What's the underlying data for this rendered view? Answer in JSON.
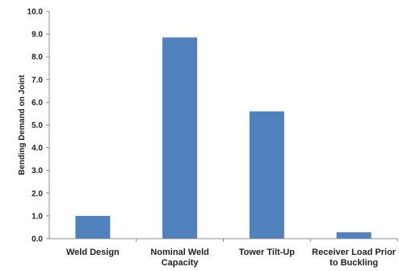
{
  "chart_data": {
    "type": "bar",
    "title": "",
    "xlabel": "",
    "ylabel": "Bending Demand on Joint",
    "ylim": [
      0,
      10
    ],
    "y_ticks": [
      "0.0",
      "1.0",
      "2.0",
      "3.0",
      "4.0",
      "5.0",
      "6.0",
      "7.0",
      "8.0",
      "9.0",
      "10.0"
    ],
    "categories": [
      [
        "Weld Design"
      ],
      [
        "Nominal Weld",
        "Capacity"
      ],
      [
        "Tower Tilt-Up"
      ],
      [
        "Receiver Load Prior",
        "to Buckling"
      ]
    ],
    "values": [
      1.0,
      8.85,
      5.6,
      0.28
    ],
    "grid": false,
    "legend": "none",
    "colors": {
      "bar": "#4f81bd",
      "axis": "#8c8c8c",
      "text": "#222222"
    }
  }
}
